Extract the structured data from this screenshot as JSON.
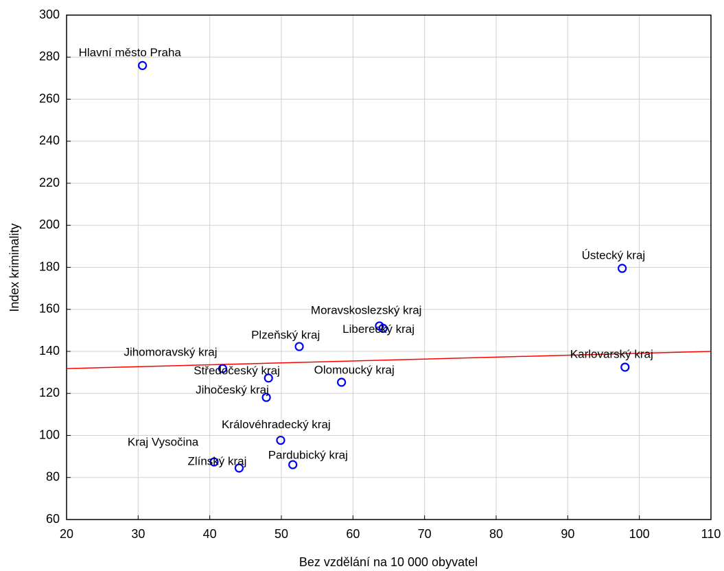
{
  "chart_data": {
    "type": "scatter",
    "xlabel": "Bez vzdělání na 10 000 obyvatel",
    "ylabel": "Index kriminality",
    "labels": [
      "Hlavní město Praha",
      "Ústecký kraj",
      "Moravskoslezský kraj",
      "Liberecký kraj",
      "Plzeňský kraj",
      "Karlovarský kraj",
      "Jihomoravský kraj",
      "Středočeský kraj",
      "Olomoucký kraj",
      "Jihočeský kraj",
      "Královéhradecký kraj",
      "Kraj Vysočina",
      "Zlínský kraj",
      "Pardubický kraj"
    ],
    "x": [
      30.6,
      97.6,
      63.7,
      64.2,
      52.5,
      98.0,
      41.8,
      48.2,
      58.4,
      47.9,
      49.9,
      40.6,
      44.1,
      51.6
    ],
    "y": [
      276,
      179.5,
      152.1,
      151,
      142.3,
      132.5,
      131.8,
      127.3,
      125.3,
      118.1,
      97.7,
      87.4,
      84.5,
      86.1
    ],
    "color": "#0000ff",
    "trend": {
      "x": [
        20,
        110
      ],
      "y": [
        131.8,
        140
      ],
      "color": "#ff0000"
    },
    "xlim": [
      20,
      110
    ],
    "xticks": [
      20,
      30,
      40,
      50,
      60,
      70,
      80,
      90,
      100,
      110
    ],
    "ylim": [
      60,
      300
    ],
    "yticks": [
      60,
      80,
      100,
      120,
      140,
      160,
      180,
      200,
      220,
      240,
      260,
      280,
      300
    ],
    "grid": true
  }
}
